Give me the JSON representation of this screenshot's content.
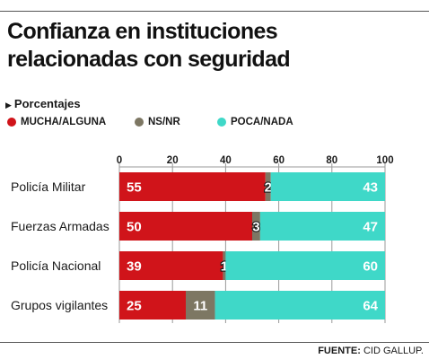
{
  "title_lines": [
    "Confianza en instituciones",
    "relacionadas con seguridad"
  ],
  "subtitle": "Porcentajes",
  "source_label": "FUENTE:",
  "source_text": "CID GALLUP.",
  "colors": {
    "mucha": "#d0141a",
    "nsnr": "#7d7763",
    "poca": "#3fd8c8"
  },
  "chart_data": {
    "type": "bar",
    "orientation": "horizontal",
    "stacked": true,
    "xlim": [
      0,
      100
    ],
    "ticks": [
      0,
      20,
      40,
      60,
      80,
      100
    ],
    "tick_labels": [
      "0",
      "20",
      "40",
      "60",
      "80",
      "100"
    ],
    "categories": [
      "Policía Militar",
      "Fuerzas Armadas",
      "Policía Nacional",
      "Grupos vigilantes"
    ],
    "series": [
      {
        "name": "MUCHA/ALGUNA",
        "values": [
          55,
          50,
          39,
          25
        ]
      },
      {
        "name": "NS/NR",
        "values": [
          2,
          3,
          1,
          11
        ]
      },
      {
        "name": "POCA/NADA",
        "values": [
          43,
          47,
          60,
          64
        ]
      }
    ],
    "grid": true,
    "legend_position": "top-left"
  }
}
